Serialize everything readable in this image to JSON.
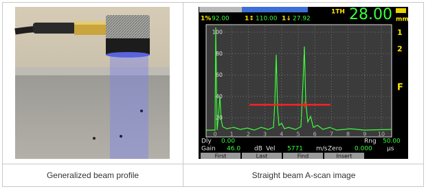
{
  "cells": [
    {
      "caption": "Generalized beam profile"
    },
    {
      "caption": "Straight beam A-scan image",
      "screen": {
        "status": [
          {
            "label": "1%",
            "value": "92.00"
          },
          {
            "label": "1↕",
            "value": "110.00"
          },
          {
            "label": "1↓",
            "value": "27.92"
          }
        ],
        "thickness": {
          "label": "1TH",
          "value": "28.00"
        },
        "unit": "mm",
        "side_labels": [
          "1",
          "2",
          "F"
        ],
        "y_labels": [
          "100",
          "80",
          "60",
          "40",
          "20"
        ],
        "x_labels": [
          "0",
          "1",
          "2",
          "3",
          "4",
          "5",
          "6",
          "7",
          "8",
          "9",
          "10"
        ],
        "delay": {
          "label": "Dly",
          "value": "0.00"
        },
        "range": {
          "label": "Rng",
          "value": "50.00"
        },
        "gain": {
          "label": "Gain",
          "value": "46.0",
          "unit": "dB"
        },
        "velocity": {
          "label": "Vel",
          "value": "5771",
          "unit": "m/s"
        },
        "zero": {
          "label": "Zero",
          "value": "0.000",
          "unit": "µs"
        },
        "buttons": [
          "First",
          "Last",
          "Find",
          "Insert"
        ]
      }
    }
  ]
}
